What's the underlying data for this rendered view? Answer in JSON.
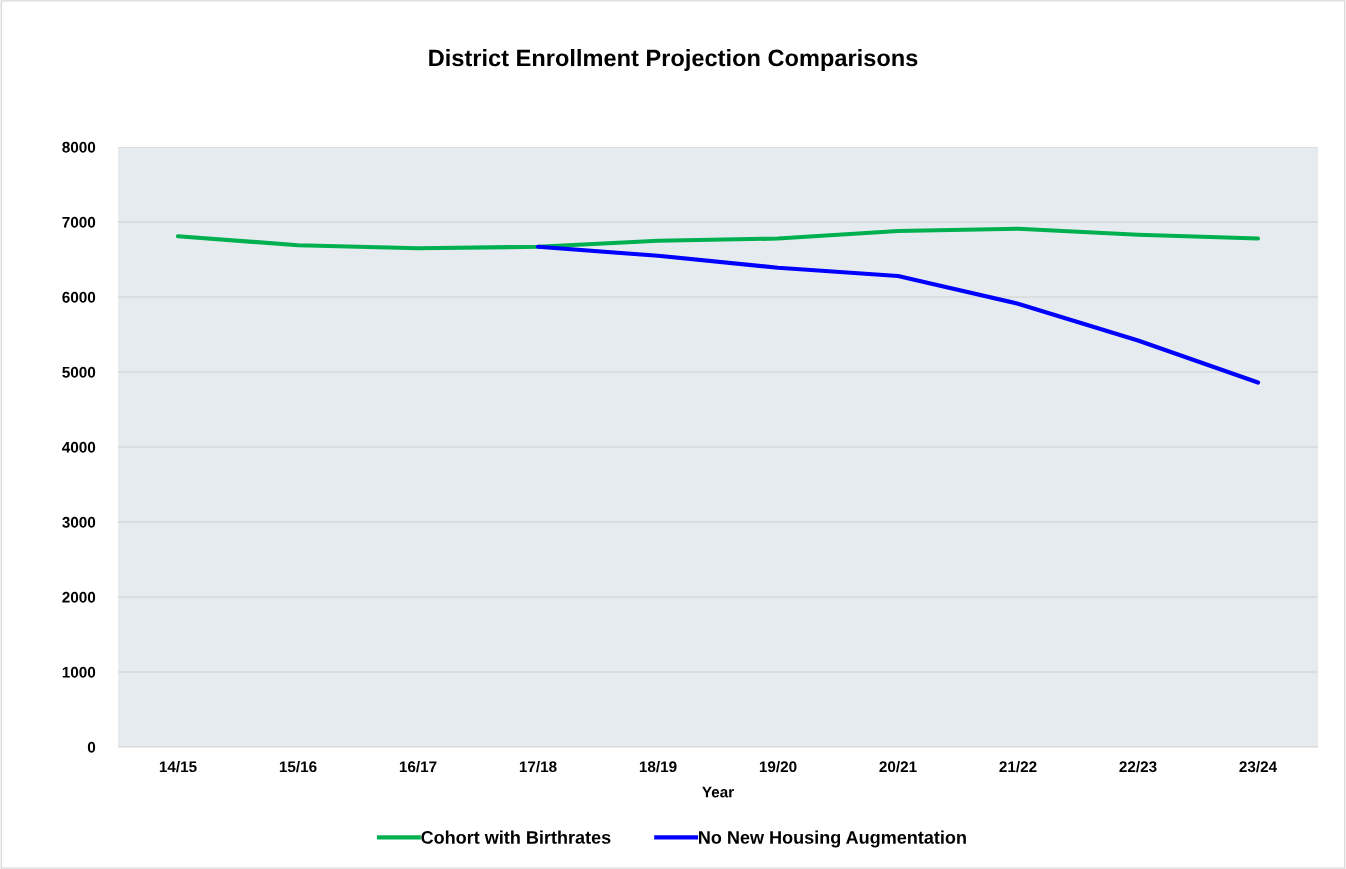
{
  "chart_data": {
    "type": "line",
    "title": "District Enrollment Projection Comparisons",
    "xlabel": "Year",
    "categories": [
      "14/15",
      "15/16",
      "16/17",
      "17/18",
      "18/19",
      "19/20",
      "20/21",
      "21/22",
      "22/23",
      "23/24"
    ],
    "series": [
      {
        "name": "Cohort with Birthrates",
        "color": "#00b050",
        "values": [
          6810,
          6690,
          6650,
          6670,
          6750,
          6780,
          6880,
          6910,
          6830,
          6780
        ]
      },
      {
        "name": "No New Housing Augmentation",
        "color": "#0000ff",
        "values": [
          null,
          null,
          null,
          6670,
          6550,
          6390,
          6280,
          5910,
          5420,
          4860
        ]
      }
    ],
    "ylim": [
      0,
      8000
    ],
    "yticks": [
      0,
      1000,
      2000,
      3000,
      4000,
      5000,
      6000,
      7000,
      8000
    ],
    "grid": "y",
    "legend": "bottom",
    "marker": "none",
    "line_style": "solid"
  }
}
